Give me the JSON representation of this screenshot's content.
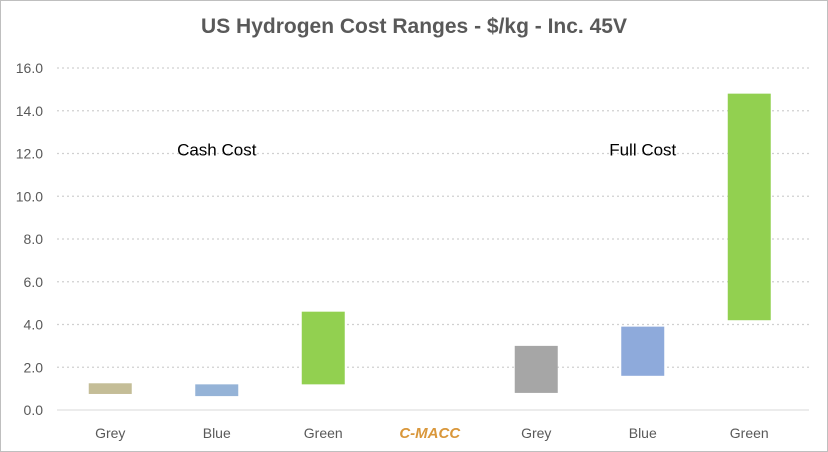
{
  "chart_data": {
    "type": "bar",
    "subtype": "floating-range",
    "title": "US Hydrogen Cost Ranges - $/kg - Inc. 45V",
    "xlabel": "",
    "ylabel": "",
    "ylim": [
      0,
      16
    ],
    "ytick_step": 2,
    "ytick_labels": [
      "0.0",
      "2.0",
      "4.0",
      "6.0",
      "8.0",
      "10.0",
      "12.0",
      "14.0",
      "16.0"
    ],
    "grid": true,
    "categories": [
      "Grey",
      "Blue",
      "Green",
      "C-MACC",
      "Grey",
      "Blue",
      "Green"
    ],
    "bars": [
      {
        "name": "Grey",
        "group": "Cash Cost",
        "low": 0.75,
        "high": 1.25,
        "color": "#c4bd97"
      },
      {
        "name": "Blue",
        "group": "Cash Cost",
        "low": 0.65,
        "high": 1.2,
        "color": "#95b3d7"
      },
      {
        "name": "Green",
        "group": "Cash Cost",
        "low": 1.2,
        "high": 4.6,
        "color": "#92d050"
      },
      {
        "name": "C-MACC",
        "group": "",
        "low": null,
        "high": null,
        "color": "#d9973b"
      },
      {
        "name": "Grey",
        "group": "Full Cost",
        "low": 0.8,
        "high": 3.0,
        "color": "#a6a6a6"
      },
      {
        "name": "Blue",
        "group": "Full Cost",
        "low": 1.6,
        "high": 3.9,
        "color": "#8eaadb"
      },
      {
        "name": "Green",
        "group": "Full Cost",
        "low": 4.2,
        "high": 14.8,
        "color": "#92d050"
      }
    ],
    "annotations": [
      {
        "text": "Cash Cost",
        "x_category_index": 1,
        "y": 11.9
      },
      {
        "text": "Full Cost",
        "x_category_index": 5,
        "y": 11.9
      }
    ],
    "watermark": "C-MACC"
  }
}
